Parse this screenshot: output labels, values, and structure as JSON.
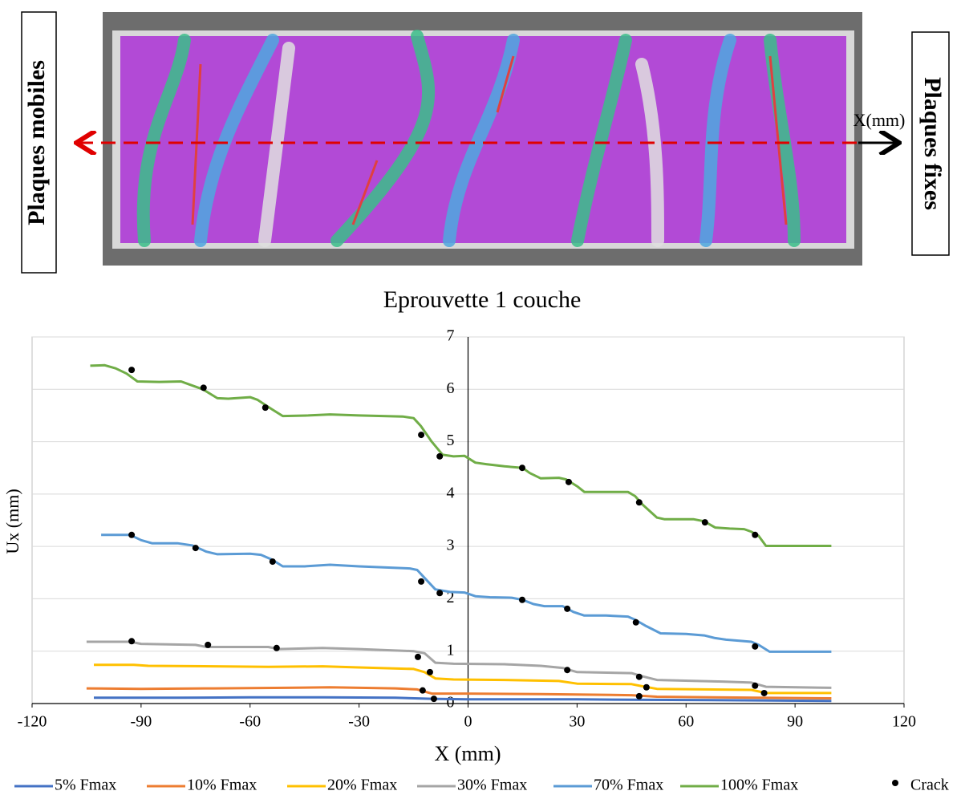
{
  "figure": {
    "left_label": "Plaques mobiles",
    "right_label": "Plaques fixes",
    "axis_label": "X(mm)",
    "caption": "Eprouvette 1 couche"
  },
  "chart_data": {
    "type": "line",
    "xlabel": "X (mm)",
    "ylabel": "Ux (mm)",
    "xlim": [
      -120,
      120
    ],
    "xticks": [
      -120,
      -90,
      -60,
      -30,
      0,
      30,
      60,
      90,
      120
    ],
    "ylim": [
      0,
      7
    ],
    "yticks": [
      0,
      1,
      2,
      3,
      4,
      5,
      6,
      7
    ],
    "grid": true,
    "series": [
      {
        "name": "5% Fmax",
        "color": "#4472c4",
        "mode": "line",
        "x": [
          -103,
          -80,
          -60,
          -40,
          -20,
          -10,
          0,
          30,
          50,
          80,
          100
        ],
        "values": [
          0.11,
          0.11,
          0.12,
          0.12,
          0.11,
          0.09,
          0.08,
          0.08,
          0.07,
          0.06,
          0.05
        ]
      },
      {
        "name": "10% Fmax",
        "color": "#ed7d31",
        "mode": "line",
        "x": [
          -105,
          -90,
          -70,
          -50,
          -38,
          -20,
          -14,
          -10,
          0,
          20,
          45,
          52,
          80,
          100
        ],
        "values": [
          0.29,
          0.28,
          0.29,
          0.3,
          0.31,
          0.29,
          0.27,
          0.19,
          0.19,
          0.18,
          0.16,
          0.13,
          0.11,
          0.1
        ]
      },
      {
        "name": "20% Fmax",
        "color": "#ffc000",
        "mode": "line",
        "x": [
          -103,
          -92,
          -88,
          -70,
          -55,
          -40,
          -30,
          -15,
          -12,
          -9,
          -4,
          10,
          25,
          30,
          45,
          48,
          52,
          78,
          82,
          100
        ],
        "values": [
          0.74,
          0.74,
          0.72,
          0.71,
          0.7,
          0.71,
          0.69,
          0.66,
          0.6,
          0.48,
          0.46,
          0.45,
          0.43,
          0.38,
          0.37,
          0.33,
          0.28,
          0.26,
          0.2,
          0.2
        ]
      },
      {
        "name": "30% Fmax",
        "color": "#a5a5a5",
        "mode": "line",
        "x": [
          -105,
          -93,
          -90,
          -75,
          -72,
          -55,
          -52,
          -40,
          -30,
          -15,
          -12,
          -9,
          -4,
          10,
          20,
          26,
          30,
          45,
          48,
          52,
          70,
          78,
          82,
          100
        ],
        "values": [
          1.18,
          1.18,
          1.14,
          1.12,
          1.08,
          1.08,
          1.04,
          1.06,
          1.04,
          1.0,
          0.96,
          0.78,
          0.76,
          0.75,
          0.72,
          0.68,
          0.6,
          0.58,
          0.52,
          0.45,
          0.42,
          0.4,
          0.32,
          0.3
        ]
      },
      {
        "name": "70% Fmax",
        "color": "#5b9bd5",
        "mode": "line",
        "x": [
          -101,
          -93,
          -90,
          -87,
          -80,
          -76,
          -72,
          -69,
          -60,
          -57,
          -54,
          -51,
          -45,
          -38,
          -30,
          -16,
          -14,
          -12,
          -9,
          -5,
          -1,
          2,
          6,
          12,
          15,
          18,
          21,
          26,
          29,
          32,
          38,
          44,
          46,
          49,
          53,
          60,
          65,
          68,
          71,
          78,
          80,
          83,
          90,
          100
        ],
        "values": [
          3.22,
          3.22,
          3.12,
          3.06,
          3.06,
          3.02,
          2.9,
          2.85,
          2.86,
          2.84,
          2.75,
          2.62,
          2.62,
          2.65,
          2.62,
          2.58,
          2.55,
          2.4,
          2.18,
          2.13,
          2.12,
          2.05,
          2.03,
          2.02,
          1.98,
          1.9,
          1.86,
          1.86,
          1.75,
          1.68,
          1.68,
          1.66,
          1.6,
          1.48,
          1.34,
          1.33,
          1.3,
          1.25,
          1.22,
          1.18,
          1.12,
          0.99,
          0.99,
          0.99
        ]
      },
      {
        "name": "100% Fmax",
        "color": "#70ad47",
        "mode": "line",
        "x": [
          -104,
          -100,
          -97,
          -94,
          -91,
          -85,
          -79,
          -77,
          -73,
          -69,
          -66,
          -60,
          -58,
          -54,
          -51,
          -44,
          -38,
          -30,
          -18,
          -15,
          -13,
          -10,
          -7,
          -4,
          -1,
          2,
          5,
          10,
          15,
          17,
          20,
          25,
          27,
          30,
          32,
          38,
          44,
          46,
          48,
          52,
          54,
          62,
          65,
          68,
          72,
          76,
          78,
          80,
          82,
          90,
          100
        ],
        "values": [
          6.45,
          6.46,
          6.4,
          6.3,
          6.15,
          6.14,
          6.15,
          6.1,
          6.0,
          5.83,
          5.82,
          5.85,
          5.8,
          5.62,
          5.49,
          5.5,
          5.52,
          5.5,
          5.48,
          5.45,
          5.3,
          5.0,
          4.75,
          4.72,
          4.73,
          4.6,
          4.57,
          4.53,
          4.5,
          4.4,
          4.3,
          4.31,
          4.28,
          4.15,
          4.04,
          4.04,
          4.04,
          3.96,
          3.8,
          3.55,
          3.52,
          3.52,
          3.48,
          3.36,
          3.34,
          3.33,
          3.28,
          3.2,
          3.01,
          3.01,
          3.01
        ]
      },
      {
        "name": "Crack",
        "color": "#000000",
        "mode": "markers",
        "x": [
          -92.6,
          -72.8,
          -55.8,
          -12.9,
          -7.8,
          14.9,
          27.7,
          47.1,
          65.2,
          79.0,
          -92.6,
          -75.0,
          -53.8,
          -12.9,
          -7.8,
          14.9,
          27.3,
          46.2,
          79.0,
          -92.6,
          -71.6,
          -52.7,
          -13.8,
          -10.5,
          27.3,
          47.1,
          49.1,
          79.0,
          81.5,
          -12.5,
          -9.4,
          47.1
        ],
        "values": [
          6.37,
          6.03,
          5.65,
          5.13,
          4.72,
          4.5,
          4.23,
          3.84,
          3.46,
          3.22,
          3.22,
          2.97,
          2.71,
          2.33,
          2.11,
          1.98,
          1.81,
          1.55,
          1.09,
          1.19,
          1.12,
          1.06,
          0.89,
          0.6,
          0.64,
          0.51,
          0.31,
          0.34,
          0.2,
          0.25,
          0.09,
          0.14
        ]
      }
    ]
  }
}
